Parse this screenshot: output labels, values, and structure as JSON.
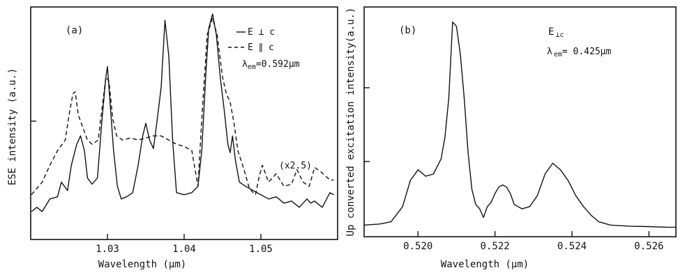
{
  "chart_data": [
    {
      "panel_label": "(a)",
      "type": "line",
      "xlabel": "Wavelength (μm)",
      "ylabel": "ESE  intensity (a.u.)",
      "xlim": [
        1.02,
        1.06
      ],
      "ylim": [
        0,
        100
      ],
      "xticks": [
        1.03,
        1.04,
        1.05
      ],
      "annotations": {
        "lambda_prefix": "λ",
        "lambda_sub": "em",
        "lambda_value": "=0.592μm",
        "scale_note": "(x2.5)"
      },
      "series": [
        {
          "name": "E ⊥ c",
          "style": "solid",
          "points": [
            [
              1.0201,
              6
            ],
            [
              1.0208,
              8
            ],
            [
              1.0215,
              6
            ],
            [
              1.0225,
              12
            ],
            [
              1.0235,
              13
            ],
            [
              1.024,
              20
            ],
            [
              1.0248,
              16
            ],
            [
              1.0253,
              28
            ],
            [
              1.026,
              38
            ],
            [
              1.0265,
              42
            ],
            [
              1.027,
              35
            ],
            [
              1.0274,
              22
            ],
            [
              1.028,
              19
            ],
            [
              1.0287,
              22
            ],
            [
              1.0293,
              50
            ],
            [
              1.0298,
              70
            ],
            [
              1.03,
              75
            ],
            [
              1.0303,
              60
            ],
            [
              1.0308,
              35
            ],
            [
              1.0313,
              18
            ],
            [
              1.0318,
              12
            ],
            [
              1.0325,
              13
            ],
            [
              1.0333,
              15
            ],
            [
              1.034,
              28
            ],
            [
              1.0346,
              42
            ],
            [
              1.035,
              48
            ],
            [
              1.0355,
              40
            ],
            [
              1.036,
              36
            ],
            [
              1.0365,
              50
            ],
            [
              1.037,
              65
            ],
            [
              1.0375,
              97
            ],
            [
              1.038,
              80
            ],
            [
              1.0385,
              40
            ],
            [
              1.039,
              15
            ],
            [
              1.04,
              14
            ],
            [
              1.041,
              15
            ],
            [
              1.0418,
              18
            ],
            [
              1.0423,
              35
            ],
            [
              1.0428,
              70
            ],
            [
              1.0432,
              93
            ],
            [
              1.0437,
              100
            ],
            [
              1.0442,
              90
            ],
            [
              1.0447,
              70
            ],
            [
              1.0452,
              55
            ],
            [
              1.0457,
              38
            ],
            [
              1.046,
              34
            ],
            [
              1.0463,
              42
            ],
            [
              1.0467,
              30
            ],
            [
              1.0472,
              20
            ],
            [
              1.048,
              18
            ],
            [
              1.049,
              16
            ],
            [
              1.05,
              14
            ],
            [
              1.051,
              12
            ],
            [
              1.052,
              13
            ],
            [
              1.053,
              10
            ],
            [
              1.054,
              11
            ],
            [
              1.055,
              8
            ],
            [
              1.056,
              12
            ],
            [
              1.0565,
              10
            ],
            [
              1.057,
              11
            ],
            [
              1.058,
              8
            ],
            [
              1.059,
              15
            ],
            [
              1.0595,
              14
            ]
          ]
        },
        {
          "name": "E ∥ c",
          "style": "dashed",
          "points": [
            [
              1.0201,
              14
            ],
            [
              1.0215,
              20
            ],
            [
              1.0225,
              28
            ],
            [
              1.0235,
              35
            ],
            [
              1.0245,
              40
            ],
            [
              1.025,
              52
            ],
            [
              1.0255,
              62
            ],
            [
              1.0258,
              63
            ],
            [
              1.0262,
              52
            ],
            [
              1.0268,
              46
            ],
            [
              1.0274,
              40
            ],
            [
              1.028,
              38
            ],
            [
              1.0288,
              40
            ],
            [
              1.0293,
              55
            ],
            [
              1.0298,
              70
            ],
            [
              1.0302,
              68
            ],
            [
              1.0307,
              50
            ],
            [
              1.0312,
              42
            ],
            [
              1.032,
              40
            ],
            [
              1.033,
              41
            ],
            [
              1.034,
              40
            ],
            [
              1.035,
              41
            ],
            [
              1.036,
              42
            ],
            [
              1.037,
              42
            ],
            [
              1.038,
              40
            ],
            [
              1.039,
              38
            ],
            [
              1.04,
              37
            ],
            [
              1.041,
              35
            ],
            [
              1.0418,
              18
            ],
            [
              1.0423,
              50
            ],
            [
              1.043,
              90
            ],
            [
              1.0437,
              98
            ],
            [
              1.0443,
              90
            ],
            [
              1.045,
              70
            ],
            [
              1.0455,
              62
            ],
            [
              1.046,
              58
            ],
            [
              1.0465,
              48
            ],
            [
              1.047,
              35
            ],
            [
              1.0478,
              26
            ],
            [
              1.0485,
              17
            ],
            [
              1.049,
              15
            ],
            [
              1.0493,
              14
            ],
            [
              1.0498,
              23
            ],
            [
              1.0502,
              28
            ],
            [
              1.051,
              20
            ],
            [
              1.052,
              24
            ],
            [
              1.053,
              18
            ],
            [
              1.054,
              19
            ],
            [
              1.0547,
              26
            ],
            [
              1.0555,
              20
            ],
            [
              1.0563,
              18
            ],
            [
              1.057,
              27
            ],
            [
              1.0578,
              25
            ],
            [
              1.059,
              21
            ],
            [
              1.0595,
              21
            ]
          ]
        }
      ]
    },
    {
      "panel_label": "(b)",
      "type": "line",
      "xlabel": "Wavelength   (μm)",
      "ylabel": "Up converted excitation intensity(a.u.)",
      "xlim": [
        0.5186,
        0.5267
      ],
      "ylim": [
        0,
        100
      ],
      "xticks": [
        0.52,
        0.522,
        0.524,
        0.526
      ],
      "xtick_labels": [
        "0.520",
        "0.522",
        "0.524",
        "0.526"
      ],
      "annotations": {
        "field_prefix": "E",
        "field_sub": "⊥c",
        "lambda_prefix": "λ",
        "lambda_sub": "em",
        "lambda_value": "= 0.425μm"
      },
      "series": [
        {
          "style": "solid",
          "points": [
            [
              0.5186,
              1.5
            ],
            [
              0.519,
              2
            ],
            [
              0.5193,
              3
            ],
            [
              0.5196,
              10
            ],
            [
              0.5198,
              22
            ],
            [
              0.52,
              27
            ],
            [
              0.5202,
              24
            ],
            [
              0.5204,
              25
            ],
            [
              0.5206,
              32
            ],
            [
              0.5207,
              42
            ],
            [
              0.5208,
              60
            ],
            [
              0.5209,
              95
            ],
            [
              0.521,
              93
            ],
            [
              0.5211,
              80
            ],
            [
              0.5212,
              60
            ],
            [
              0.5213,
              35
            ],
            [
              0.5214,
              18
            ],
            [
              0.5215,
              11
            ],
            [
              0.5216,
              9
            ],
            [
              0.5217,
              5
            ],
            [
              0.5218,
              10
            ],
            [
              0.5219,
              12
            ],
            [
              0.522,
              16
            ],
            [
              0.5221,
              19
            ],
            [
              0.5222,
              20
            ],
            [
              0.5223,
              19
            ],
            [
              0.5224,
              16
            ],
            [
              0.5225,
              11
            ],
            [
              0.5227,
              9
            ],
            [
              0.5229,
              10
            ],
            [
              0.5231,
              15
            ],
            [
              0.5233,
              25
            ],
            [
              0.5235,
              30
            ],
            [
              0.5237,
              27
            ],
            [
              0.5239,
              22
            ],
            [
              0.5241,
              15
            ],
            [
              0.5243,
              10
            ],
            [
              0.5245,
              6
            ],
            [
              0.5247,
              3
            ],
            [
              0.525,
              1.5
            ],
            [
              0.5255,
              1
            ],
            [
              0.526,
              0.8
            ],
            [
              0.5265,
              0.5
            ],
            [
              0.5267,
              0.5
            ]
          ]
        }
      ]
    }
  ]
}
